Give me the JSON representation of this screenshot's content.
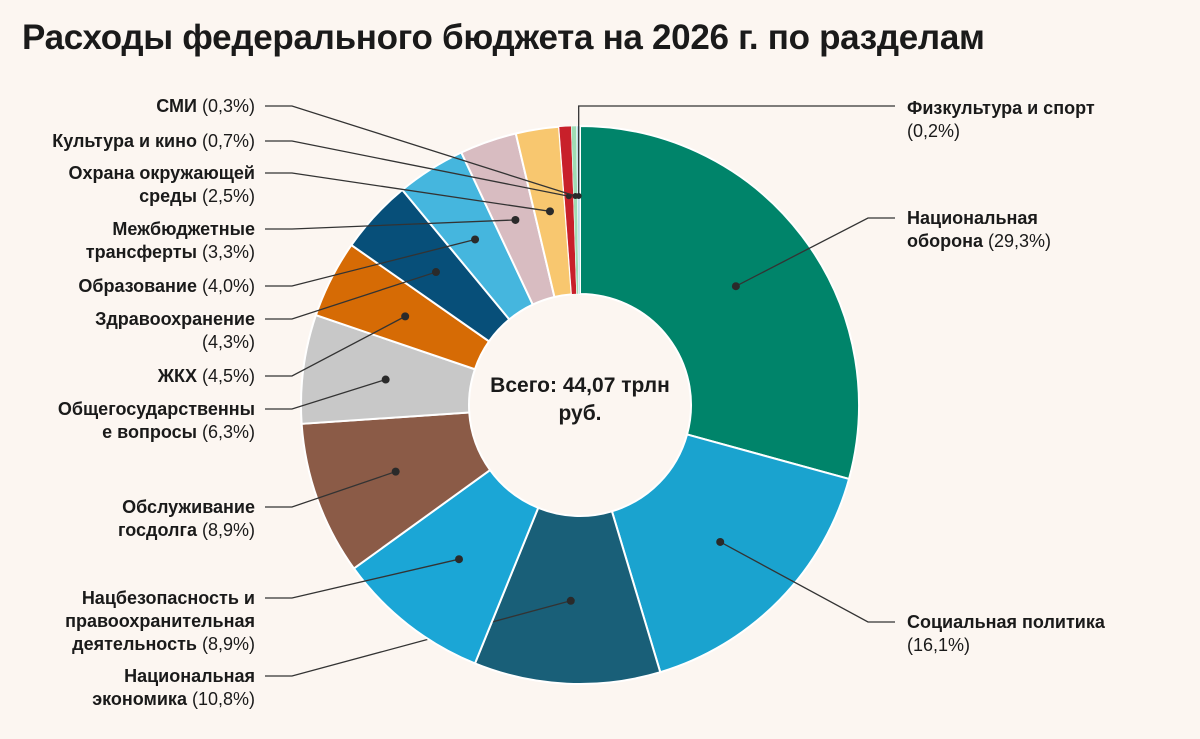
{
  "chart_data": {
    "type": "pie",
    "donut": true,
    "title": "Расходы федерального бюджета на 2026 г. по разделам",
    "center_label": "Всего: 44,07 трлн руб.",
    "unit": "%",
    "slices": [
      {
        "name": "Национальная оборона",
        "value": 29.3,
        "label": "(29,3%)",
        "color": "#00846a"
      },
      {
        "name": "Социальная политика",
        "value": 16.1,
        "label": "(16,1%)",
        "color": "#1aa3cf"
      },
      {
        "name": "Национальная экономика",
        "value": 10.8,
        "label": "(10,8%)",
        "color": "#195f78"
      },
      {
        "name": "Нацбезопасность и правоохранительная деятельность",
        "value": 8.9,
        "label": "(8,9%)",
        "color": "#1ba6d6"
      },
      {
        "name": "Обслуживание госдолга",
        "value": 8.9,
        "label": "(8,9%)",
        "color": "#8b5b47"
      },
      {
        "name": "Общегосударственные вопросы",
        "value": 6.3,
        "label": "(6,3%)",
        "color": "#c8c8c8"
      },
      {
        "name": "ЖКХ",
        "value": 4.5,
        "label": "(4,5%)",
        "color": "#d66b05"
      },
      {
        "name": "Здравоохранение",
        "value": 4.3,
        "label": "(4,3%)",
        "color": "#074f79"
      },
      {
        "name": "Образование",
        "value": 4.0,
        "label": "(4,0%)",
        "color": "#45b6de"
      },
      {
        "name": "Межбюджетные трансферты",
        "value": 3.3,
        "label": "(3,3%)",
        "color": "#d8bcc1"
      },
      {
        "name": "Охрана окружающей среды",
        "value": 2.5,
        "label": "(2,5%)",
        "color": "#f8c76f"
      },
      {
        "name": "Культура и кино",
        "value": 0.7,
        "label": "(0,7%)",
        "color": "#c8202a"
      },
      {
        "name": "СМИ",
        "value": 0.3,
        "label": "(0,3%)",
        "color": "#9fdcb4"
      },
      {
        "name": "Физкультура и спорт",
        "value": 0.2,
        "label": "(0,2%)",
        "color": "#b9dde8"
      }
    ]
  }
}
